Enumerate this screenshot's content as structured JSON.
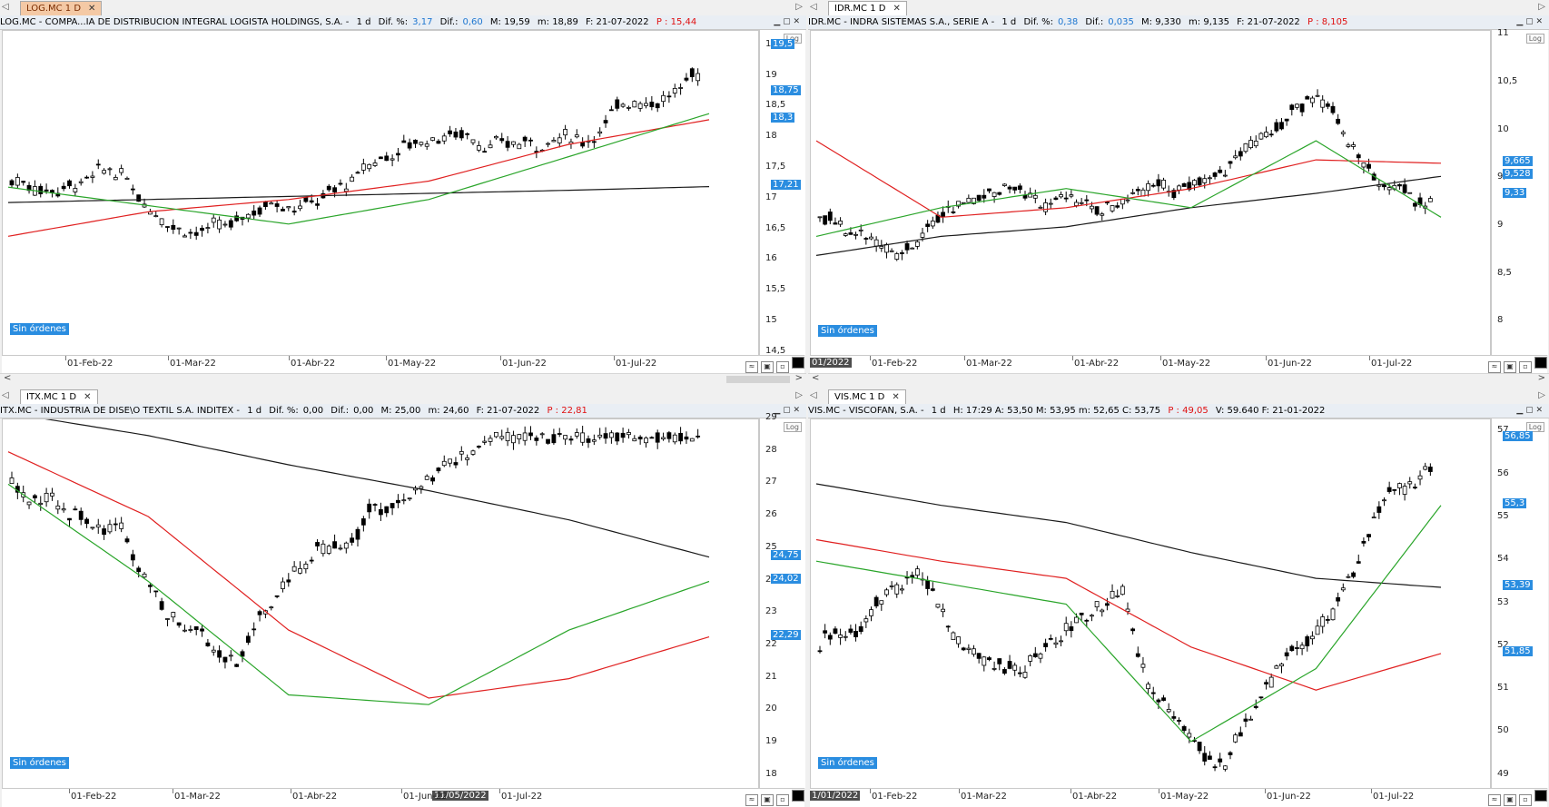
{
  "charts": [
    {
      "tab": "LOG.MC 1 D",
      "active": true,
      "header": {
        "name": "LOG.MC - COMPA...IA DE DISTRIBUCION INTEGRAL LOGISTA HOLDINGS, S.A. -",
        "period": "1 d",
        "dif_pct_label": "Dif. %:",
        "dif_pct": "3,17",
        "dif_label": "Dif.:",
        "dif": "0,60",
        "hi": "M: 19,59",
        "lo": "m: 18,89",
        "date": "F: 21-07-2022",
        "p": "P : 15,44"
      },
      "yticks": [
        "19,5",
        "19",
        "18,5",
        "18",
        "17,5",
        "17",
        "16,5",
        "16",
        "15,5",
        "15",
        "14,5"
      ],
      "markers": [
        "19,5",
        "18,75",
        "18,3",
        "17,21"
      ],
      "xlabels": [
        "01-Feb-22",
        "01-Mar-22",
        "01-Abr-22",
        "01-May-22",
        "01-Jun-22",
        "01-Jul-22"
      ],
      "date_box": "",
      "orders_label": "Sin órdenes",
      "log_label": "Log"
    },
    {
      "tab": "IDR.MC 1 D",
      "active": false,
      "header": {
        "name": "IDR.MC - INDRA SISTEMAS S.A., SERIE A -",
        "period": "1 d",
        "dif_pct_label": "Dif. %:",
        "dif_pct": "0,38",
        "dif_label": "Dif.:",
        "dif": "0,035",
        "hi": "M: 9,330",
        "lo": "m: 9,135",
        "date": "F: 21-07-2022",
        "p": "P : 8,105"
      },
      "yticks": [
        "11",
        "10,5",
        "10",
        "9,5",
        "9",
        "8,5",
        "8"
      ],
      "markers": [
        "9,665",
        "9,528",
        "9,33"
      ],
      "xlabels": [
        "01-Feb-22",
        "01-Mar-22",
        "01-Abr-22",
        "01-May-22",
        "01-Jun-22",
        "01-Jul-22"
      ],
      "date_box": "01/2022",
      "orders_label": "Sin órdenes",
      "log_label": "Log"
    },
    {
      "tab": "ITX.MC 1 D",
      "active": false,
      "header": {
        "name": "ITX.MC - INDUSTRIA DE DISE\\O TEXTIL S.A. INDITEX -",
        "period": "1 d",
        "dif_pct_label": "Dif. %:",
        "dif_pct": "0,00",
        "dif_label": "Dif.:",
        "dif": "0,00",
        "hi": "M: 25,00",
        "lo": "m: 24,60",
        "date": "F: 21-07-2022",
        "p": "P : 22,81"
      },
      "yticks": [
        "29",
        "28",
        "27",
        "26",
        "25",
        "24",
        "23",
        "22",
        "21",
        "20",
        "19",
        "18"
      ],
      "markers": [
        "24,75",
        "24,02",
        "22,29"
      ],
      "xlabels": [
        "01-Feb-22",
        "01-Mar-22",
        "01-Abr-22",
        "01-Jun-22",
        "01-Jul-22"
      ],
      "date_box": "11/05/2022",
      "orders_label": "Sin órdenes",
      "log_label": "Log"
    },
    {
      "tab": "VIS.MC 1 D",
      "active": false,
      "header": {
        "name": "VIS.MC - VISCOFAN, S.A. -",
        "period": "1 d",
        "extra": "H: 17:29  A: 53,50  M: 53,95  m: 52,65  C: 53,75",
        "p": "P : 49,05",
        "vol": "V: 59.640  F: 21-01-2022"
      },
      "yticks": [
        "57",
        "56",
        "55",
        "54",
        "53",
        "52",
        "51",
        "50",
        "49"
      ],
      "markers": [
        "56,85",
        "55,3",
        "53,39",
        "51,85"
      ],
      "xlabels": [
        "01-Feb-22",
        "01-Mar-22",
        "01-Abr-22",
        "01-May-22",
        "01-Jun-22",
        "01-Jul-22"
      ],
      "date_box": "1/01/2022",
      "orders_label": "Sin órdenes",
      "log_label": "Log"
    }
  ],
  "colors": {
    "sma_short": "#2aa52a",
    "sma_mid": "#e02020",
    "sma_long": "#1a1a1a",
    "marker_bg": "#2a8de0",
    "up_candle": "#ffffff",
    "down_candle": "#000000"
  }
}
